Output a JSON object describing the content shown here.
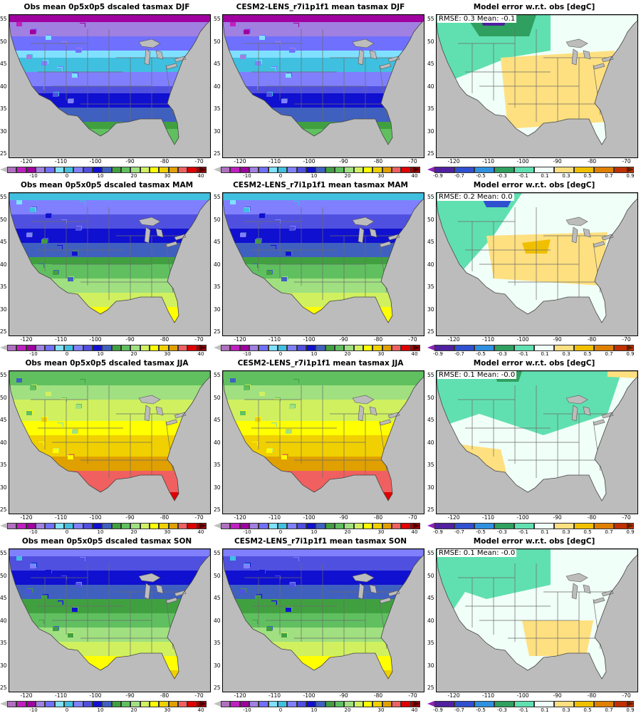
{
  "seasons": [
    {
      "obs_title": "Obs mean 0p5x0p5 dscaled tasmax DJF",
      "model_title": "CESM2-LENS_r7i1p1f1 mean tasmax DJF",
      "err_title": "Model error w.r.t. obs [degC]",
      "stats": "RMSE: 0.3  Mean: -0.1"
    },
    {
      "obs_title": "Obs mean 0p5x0p5 dscaled tasmax MAM",
      "model_title": "CESM2-LENS_r7i1p1f1 mean tasmax MAM",
      "err_title": "Model error w.r.t. obs [degC]",
      "stats": "RMSE: 0.2  Mean: 0.0"
    },
    {
      "obs_title": "Obs mean 0p5x0p5 dscaled tasmax JJA",
      "model_title": "CESM2-LENS_r7i1p1f1 mean tasmax JJA",
      "err_title": "Model error w.r.t. obs [degC]",
      "stats": "RMSE: 0.1  Mean: -0.0"
    },
    {
      "obs_title": "Obs mean 0p5x0p5 dscaled tasmax SON",
      "model_title": "CESM2-LENS_r7i1p1f1 mean tasmax SON",
      "err_title": "Model error w.r.t. obs [degC]",
      "stats": "RMSE: 0.1  Mean: -0.0"
    }
  ],
  "lat_ticks": [
    "55",
    "50",
    "45",
    "40",
    "35",
    "30",
    "25"
  ],
  "lon_ticks": [
    "-120",
    "-110",
    "-100",
    "-90",
    "-80",
    "-70"
  ],
  "temp_colorbar": {
    "labels": [
      "-10",
      "0",
      "10",
      "20",
      "30",
      "40"
    ],
    "colors": [
      "#c0c0c0",
      "#b070c0",
      "#c020c0",
      "#a000a0",
      "#a080e0",
      "#7070ff",
      "#80e0ff",
      "#40c0e0",
      "#8080ff",
      "#5050e0",
      "#1010d0",
      "#4060c0",
      "#40a040",
      "#60c060",
      "#a0e080",
      "#d0f060",
      "#ffff00",
      "#f0d000",
      "#e0a000",
      "#f06060",
      "#e00000",
      "#a00000",
      "#500000"
    ]
  },
  "err_colorbar": {
    "labels": [
      "-0.9",
      "-0.7",
      "-0.5",
      "-0.3",
      "-0.1",
      "0.1",
      "0.3",
      "0.5",
      "0.7",
      "0.9"
    ],
    "colors": [
      "#9020c0",
      "#5020a0",
      "#3050d0",
      "#3090e0",
      "#30a060",
      "#60e0b0",
      "#f0fff8",
      "#ffe080",
      "#f0c000",
      "#e08000",
      "#c03000",
      "#602000"
    ]
  }
}
